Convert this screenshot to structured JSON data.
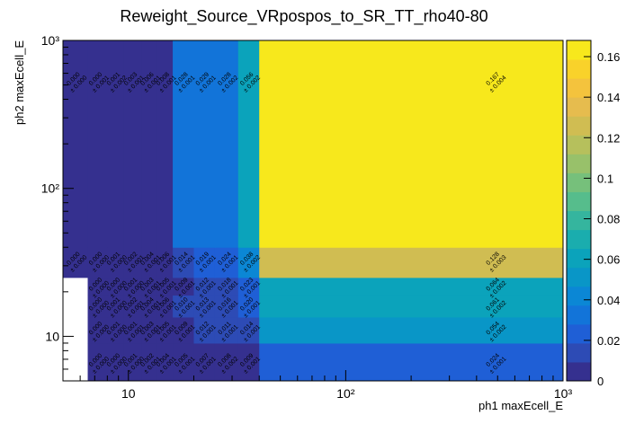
{
  "chart_data": {
    "type": "heatmap",
    "title": "Reweight_Source_VRpospos_to_SR_TT_rho40-80",
    "xlabel": "ph1 maxEcell_E",
    "ylabel": "ph2 maxEcell_E",
    "x_scale": "log",
    "y_scale": "log",
    "xlim": [
      5,
      1000
    ],
    "ylim": [
      5,
      1000
    ],
    "x_tick_labels": [
      "10",
      "10²",
      "10³"
    ],
    "y_tick_labels": [
      "10",
      "10²",
      "10³"
    ],
    "colorbar": {
      "range": [
        0,
        0.168
      ],
      "ticks": [
        "0",
        "0.02",
        "0.04",
        "0.06",
        "0.08",
        "0.1",
        "0.12",
        "0.14",
        "0.16"
      ]
    },
    "x_edges": [
      5,
      6.5,
      8,
      9.5,
      11.5,
      13.5,
      16,
      20,
      25,
      32,
      40,
      1000
    ],
    "y_edges": [
      5,
      9,
      13.5,
      19,
      25,
      40,
      1000
    ],
    "cells": [
      {
        "x0": 6.5,
        "x1": 8,
        "y0": 5,
        "y1": 9,
        "value": 0.0,
        "label": [
          "0.000",
          "± 0.000"
        ]
      },
      {
        "x0": 8,
        "x1": 9.5,
        "y0": 5,
        "y1": 9,
        "value": 0.0,
        "label": [
          "0.000",
          "± 0.000"
        ]
      },
      {
        "x0": 9.5,
        "x1": 11.5,
        "y0": 5,
        "y1": 9,
        "value": 0.001,
        "label": [
          "0.001",
          "± 0.000"
        ]
      },
      {
        "x0": 11.5,
        "x1": 13.5,
        "y0": 5,
        "y1": 9,
        "value": 0.002,
        "label": [
          "0.002",
          "± 0.001"
        ]
      },
      {
        "x0": 13.5,
        "x1": 16,
        "y0": 5,
        "y1": 9,
        "value": 0.004,
        "label": [
          "0.004",
          "± 0.001"
        ]
      },
      {
        "x0": 16,
        "x1": 20,
        "y0": 5,
        "y1": 9,
        "value": 0.005,
        "label": [
          "0.005",
          "± 0.001"
        ]
      },
      {
        "x0": 20,
        "x1": 25,
        "y0": 5,
        "y1": 9,
        "value": 0.007,
        "label": [
          "0.007",
          "± 0.001"
        ]
      },
      {
        "x0": 25,
        "x1": 32,
        "y0": 5,
        "y1": 9,
        "value": 0.008,
        "label": [
          "0.008",
          "± 0.002"
        ]
      },
      {
        "x0": 32,
        "x1": 40,
        "y0": 5,
        "y1": 9,
        "value": 0.009,
        "label": [
          "0.009",
          "± 0.001"
        ]
      },
      {
        "x0": 40,
        "x1": 1000,
        "y0": 5,
        "y1": 9,
        "value": 0.024,
        "label": [
          "0.024",
          "± 0.001"
        ]
      },
      {
        "x0": 6.5,
        "x1": 8,
        "y0": 9,
        "y1": 13.5,
        "value": 0.0,
        "label": [
          "0.000",
          "± 0.000"
        ]
      },
      {
        "x0": 8,
        "x1": 9.5,
        "y0": 9,
        "y1": 13.5,
        "value": 0.001,
        "label": [
          "0.001",
          "± 0.000"
        ]
      },
      {
        "x0": 9.5,
        "x1": 11.5,
        "y0": 9,
        "y1": 13.5,
        "value": 0.001,
        "label": [
          "0.001",
          "± 0.001"
        ]
      },
      {
        "x0": 11.5,
        "x1": 13.5,
        "y0": 9,
        "y1": 13.5,
        "value": 0.003,
        "label": [
          "0.003",
          "± 0.001"
        ]
      },
      {
        "x0": 13.5,
        "x1": 16,
        "y0": 9,
        "y1": 13.5,
        "value": 0.005,
        "label": [
          "0.005",
          "± 0.001"
        ]
      },
      {
        "x0": 16,
        "x1": 20,
        "y0": 9,
        "y1": 13.5,
        "value": 0.009,
        "label": [
          "0.009",
          "± 0.001"
        ]
      },
      {
        "x0": 20,
        "x1": 25,
        "y0": 9,
        "y1": 13.5,
        "value": 0.012,
        "label": [
          "0.012",
          "± 0.001"
        ]
      },
      {
        "x0": 25,
        "x1": 32,
        "y0": 9,
        "y1": 13.5,
        "value": 0.011,
        "label": [
          "0.011",
          "± 0.001"
        ]
      },
      {
        "x0": 32,
        "x1": 40,
        "y0": 9,
        "y1": 13.5,
        "value": 0.014,
        "label": [
          "0.014",
          "± 0.001"
        ]
      },
      {
        "x0": 40,
        "x1": 1000,
        "y0": 9,
        "y1": 13.5,
        "value": 0.054,
        "label": [
          "0.054",
          "± 0.002"
        ]
      },
      {
        "x0": 6.5,
        "x1": 8,
        "y0": 13.5,
        "y1": 19,
        "value": 0.0,
        "label": [
          "0.000",
          "± 0.000"
        ]
      },
      {
        "x0": 8,
        "x1": 9.5,
        "y0": 13.5,
        "y1": 19,
        "value": 0.001,
        "label": [
          "0.001",
          "± 0.000"
        ]
      },
      {
        "x0": 9.5,
        "x1": 11.5,
        "y0": 13.5,
        "y1": 19,
        "value": 0.002,
        "label": [
          "0.002",
          "± 0.001"
        ]
      },
      {
        "x0": 11.5,
        "x1": 13.5,
        "y0": 13.5,
        "y1": 19,
        "value": 0.004,
        "label": [
          "0.004",
          "± 0.001"
        ]
      },
      {
        "x0": 13.5,
        "x1": 16,
        "y0": 13.5,
        "y1": 19,
        "value": 0.006,
        "label": [
          "0.006",
          "± 0.001"
        ]
      },
      {
        "x0": 16,
        "x1": 20,
        "y0": 13.5,
        "y1": 19,
        "value": 0.01,
        "label": [
          "0.010",
          "± 0.001"
        ]
      },
      {
        "x0": 20,
        "x1": 25,
        "y0": 13.5,
        "y1": 19,
        "value": 0.013,
        "label": [
          "0.013",
          "± 0.001"
        ]
      },
      {
        "x0": 25,
        "x1": 32,
        "y0": 13.5,
        "y1": 19,
        "value": 0.016,
        "label": [
          "0.016",
          "± 0.001"
        ]
      },
      {
        "x0": 32,
        "x1": 40,
        "y0": 13.5,
        "y1": 19,
        "value": 0.02,
        "label": [
          "0.020",
          "± 0.001"
        ]
      },
      {
        "x0": 40,
        "x1": 1000,
        "y0": 13.5,
        "y1": 19,
        "value": 0.061,
        "label": [
          "0.061",
          "± 0.002"
        ]
      },
      {
        "x0": 6.5,
        "x1": 8,
        "y0": 19,
        "y1": 25,
        "value": 0.0,
        "label": [
          "0.000",
          "± 0.000"
        ]
      },
      {
        "x0": 8,
        "x1": 9.5,
        "y0": 19,
        "y1": 25,
        "value": 0.0,
        "label": [
          "0.000",
          "± 0.000"
        ]
      },
      {
        "x0": 9.5,
        "x1": 11.5,
        "y0": 19,
        "y1": 25,
        "value": 0.001,
        "label": [
          "0.001",
          "± 0.000"
        ]
      },
      {
        "x0": 11.5,
        "x1": 13.5,
        "y0": 19,
        "y1": 25,
        "value": 0.003,
        "label": [
          "0.003",
          "± 0.001"
        ]
      },
      {
        "x0": 13.5,
        "x1": 16,
        "y0": 19,
        "y1": 25,
        "value": 0.005,
        "label": [
          "0.005",
          "± 0.001"
        ]
      },
      {
        "x0": 16,
        "x1": 20,
        "y0": 19,
        "y1": 25,
        "value": 0.009,
        "label": [
          "0.009",
          "± 0.001"
        ]
      },
      {
        "x0": 20,
        "x1": 25,
        "y0": 19,
        "y1": 25,
        "value": 0.012,
        "label": [
          "0.012",
          "± 0.001"
        ]
      },
      {
        "x0": 25,
        "x1": 32,
        "y0": 19,
        "y1": 25,
        "value": 0.018,
        "label": [
          "0.018",
          "± 0.001"
        ]
      },
      {
        "x0": 32,
        "x1": 40,
        "y0": 19,
        "y1": 25,
        "value": 0.023,
        "label": [
          "0.023",
          "± 0.001"
        ]
      },
      {
        "x0": 40,
        "x1": 1000,
        "y0": 19,
        "y1": 25,
        "value": 0.064,
        "label": [
          "0.064",
          "± 0.002"
        ]
      },
      {
        "x0": 5,
        "x1": 6.5,
        "y0": 25,
        "y1": 40,
        "value": 0.0,
        "label": [
          "0.000",
          "± 0.000"
        ]
      },
      {
        "x0": 6.5,
        "x1": 8,
        "y0": 25,
        "y1": 40,
        "value": 0.0,
        "label": [
          "0.000",
          "± 0.000"
        ]
      },
      {
        "x0": 8,
        "x1": 9.5,
        "y0": 25,
        "y1": 40,
        "value": 0.001,
        "label": [
          "0.001",
          "± 0.000"
        ]
      },
      {
        "x0": 9.5,
        "x1": 11.5,
        "y0": 25,
        "y1": 40,
        "value": 0.002,
        "label": [
          "0.002",
          "± 0.001"
        ]
      },
      {
        "x0": 11.5,
        "x1": 13.5,
        "y0": 25,
        "y1": 40,
        "value": 0.004,
        "label": [
          "0.004",
          "± 0.001"
        ]
      },
      {
        "x0": 13.5,
        "x1": 16,
        "y0": 25,
        "y1": 40,
        "value": 0.006,
        "label": [
          "0.006",
          "± 0.001"
        ]
      },
      {
        "x0": 16,
        "x1": 20,
        "y0": 25,
        "y1": 40,
        "value": 0.014,
        "label": [
          "0.014",
          "± 0.001"
        ]
      },
      {
        "x0": 20,
        "x1": 25,
        "y0": 25,
        "y1": 40,
        "value": 0.019,
        "label": [
          "0.019",
          "± 0.001"
        ]
      },
      {
        "x0": 25,
        "x1": 32,
        "y0": 25,
        "y1": 40,
        "value": 0.024,
        "label": [
          "0.024",
          "± 0.001"
        ]
      },
      {
        "x0": 32,
        "x1": 40,
        "y0": 25,
        "y1": 40,
        "value": 0.038,
        "label": [
          "0.038",
          "± 0.002"
        ]
      },
      {
        "x0": 40,
        "x1": 1000,
        "y0": 25,
        "y1": 40,
        "value": 0.128,
        "label": [
          "0.128",
          "± 0.003"
        ]
      },
      {
        "x0": 5,
        "x1": 6.5,
        "y0": 40,
        "y1": 1000,
        "value": 0.0,
        "label": [
          "0.000",
          "± 0.000"
        ]
      },
      {
        "x0": 6.5,
        "x1": 8,
        "y0": 40,
        "y1": 1000,
        "value": 0.0,
        "label": [
          "0.000",
          "± 0.001"
        ]
      },
      {
        "x0": 8,
        "x1": 9.5,
        "y0": 40,
        "y1": 1000,
        "value": 0.001,
        "label": [
          "0.001",
          "± 0.002"
        ]
      },
      {
        "x0": 9.5,
        "x1": 11.5,
        "y0": 40,
        "y1": 1000,
        "value": 0.003,
        "label": [
          "0.003",
          "± 0.001"
        ]
      },
      {
        "x0": 11.5,
        "x1": 13.5,
        "y0": 40,
        "y1": 1000,
        "value": 0.006,
        "label": [
          "0.006",
          "± 0.001"
        ]
      },
      {
        "x0": 13.5,
        "x1": 16,
        "y0": 40,
        "y1": 1000,
        "value": 0.008,
        "label": [
          "0.008",
          "± 0.001"
        ]
      },
      {
        "x0": 16,
        "x1": 20,
        "y0": 40,
        "y1": 1000,
        "value": 0.028,
        "label": [
          "0.028",
          "± 0.001"
        ]
      },
      {
        "x0": 20,
        "x1": 25,
        "y0": 40,
        "y1": 1000,
        "value": 0.029,
        "label": [
          "0.029",
          "± 0.001"
        ]
      },
      {
        "x0": 25,
        "x1": 32,
        "y0": 40,
        "y1": 1000,
        "value": 0.028,
        "label": [
          "0.028",
          "± 0.002"
        ]
      },
      {
        "x0": 32,
        "x1": 40,
        "y0": 40,
        "y1": 1000,
        "value": 0.056,
        "label": [
          "0.056",
          "± 0.002"
        ]
      },
      {
        "x0": 40,
        "x1": 1000,
        "y0": 40,
        "y1": 1000,
        "value": 0.167,
        "label": [
          "0.167",
          "± 0.004"
        ]
      }
    ]
  }
}
